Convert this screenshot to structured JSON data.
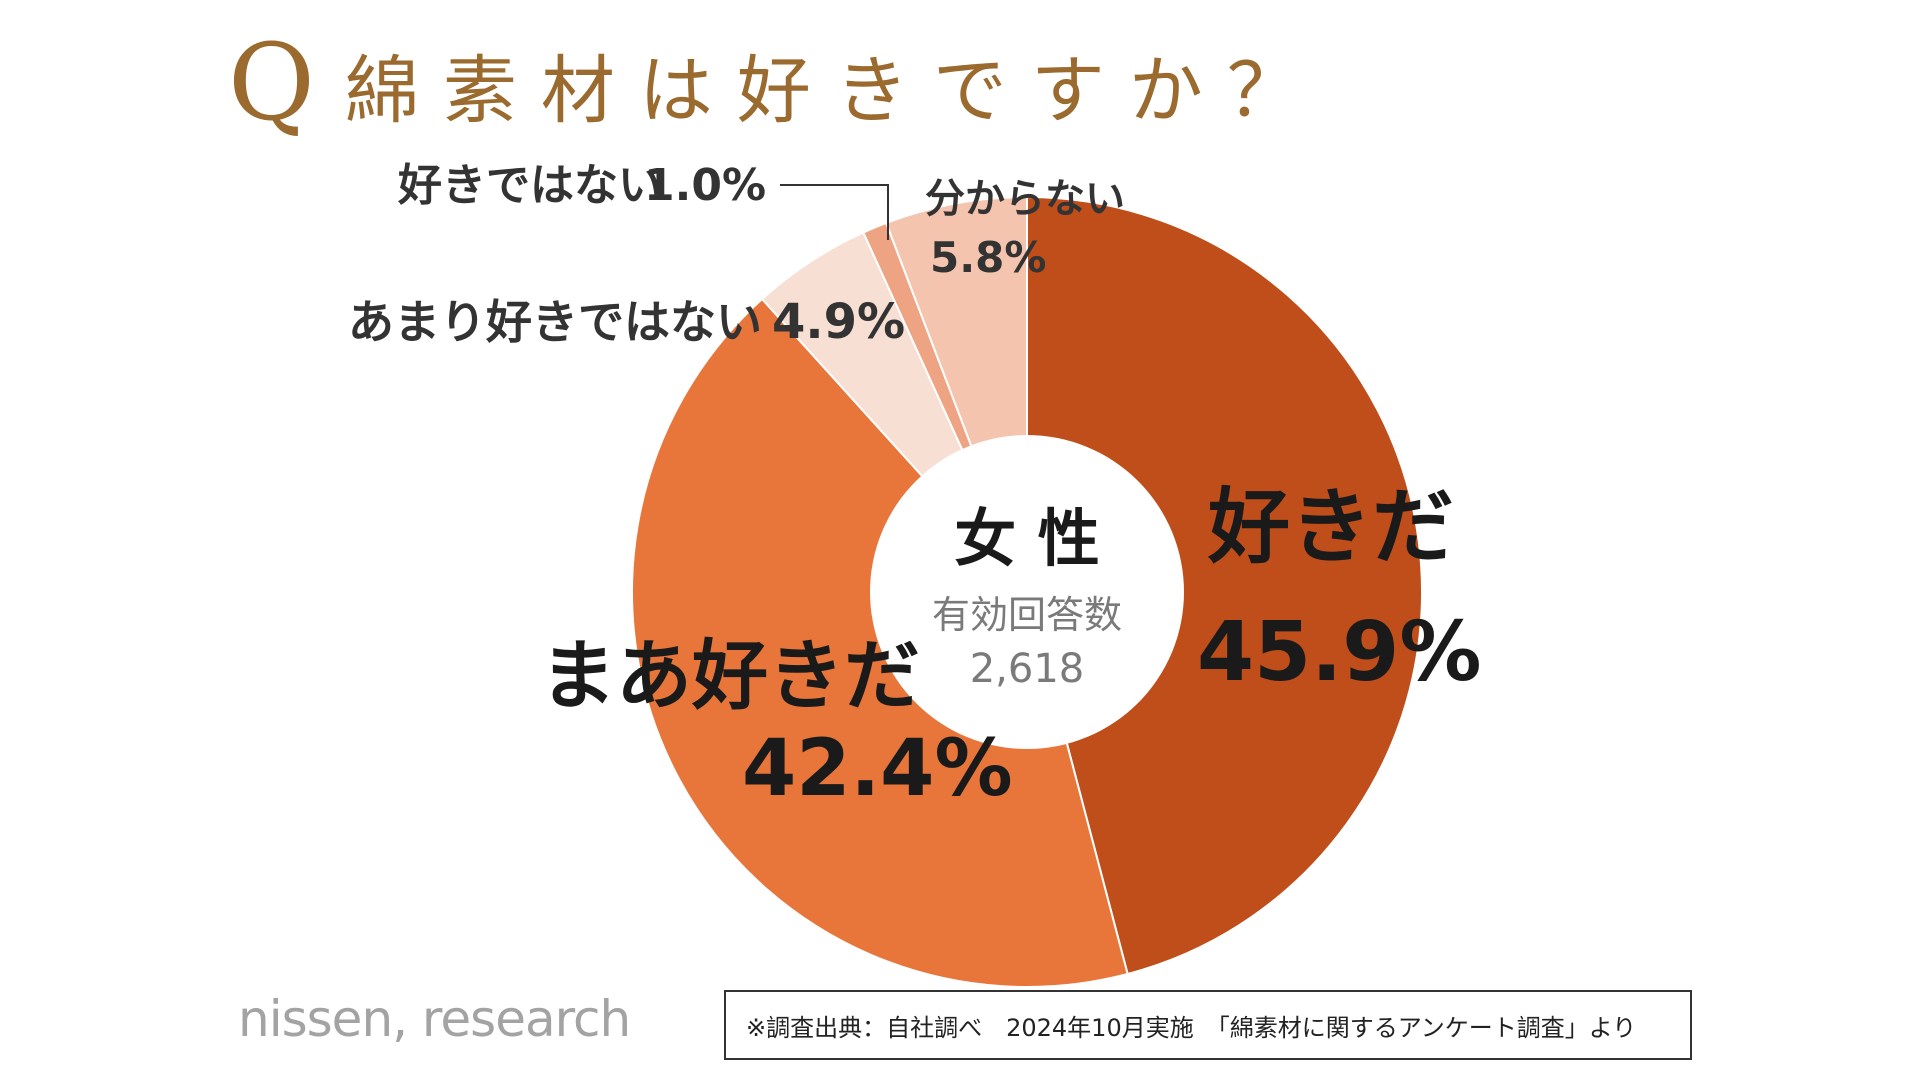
{
  "title": {
    "q_mark": "Q",
    "text": "綿素材は好きですか？"
  },
  "colors": {
    "title": "#9a6a2e",
    "slices": [
      "#bf4e1a",
      "#e8763a",
      "#f8dfd3",
      "#eea483",
      "#f4c4ae"
    ]
  },
  "chart_data": {
    "type": "pie",
    "center_label": "女 性",
    "center_sub_label": "有効回答数",
    "center_count": "2,618",
    "slices": [
      {
        "label": "好きだ",
        "value": 45.9,
        "display": "45.9%"
      },
      {
        "label": "まあ好きだ",
        "value": 42.4,
        "display": "42.4%"
      },
      {
        "label": "あまり好きではない",
        "value": 4.9,
        "display": "4.9%"
      },
      {
        "label": "好きではない",
        "value": 1.0,
        "display": "1.0%"
      },
      {
        "label": "分からない",
        "value": 5.8,
        "display": "5.8%"
      }
    ]
  },
  "footer": {
    "logo": "nissen, research",
    "source": "※調査出典：自社調べ　2024年10月実施　「綿素材に関するアンケート調査」より"
  }
}
